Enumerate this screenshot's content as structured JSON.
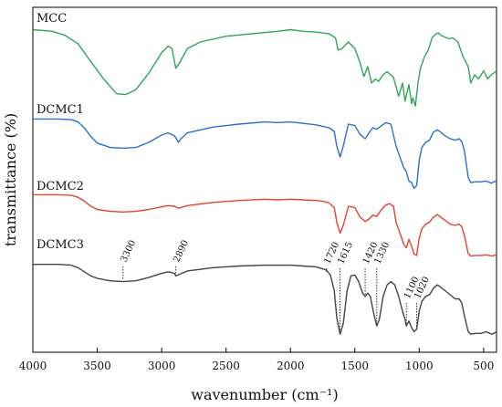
{
  "chart_data": {
    "type": "line",
    "title": "",
    "xlabel": "wavenumber (cm⁻¹)",
    "ylabel": "transmittance (%)",
    "xlim": [
      4000,
      400
    ],
    "x_reversed": true,
    "x_ticks": [
      "4000",
      "3500",
      "3000",
      "2500",
      "2000",
      "1500",
      "1000",
      "500"
    ],
    "y_ticks_shown": false,
    "legend": "none",
    "series": [
      {
        "name": "MCC",
        "color": "#2fa65a",
        "points": [
          [
            4000,
            0.95
          ],
          [
            3850,
            0.93
          ],
          [
            3750,
            0.88
          ],
          [
            3650,
            0.78
          ],
          [
            3550,
            0.56
          ],
          [
            3450,
            0.35
          ],
          [
            3350,
            0.17
          ],
          [
            3280,
            0.16
          ],
          [
            3200,
            0.22
          ],
          [
            3100,
            0.42
          ],
          [
            3000,
            0.67
          ],
          [
            2950,
            0.75
          ],
          [
            2920,
            0.72
          ],
          [
            2890,
            0.48
          ],
          [
            2860,
            0.55
          ],
          [
            2800,
            0.72
          ],
          [
            2700,
            0.8
          ],
          [
            2500,
            0.87
          ],
          [
            2300,
            0.9
          ],
          [
            2100,
            0.93
          ],
          [
            2000,
            0.95
          ],
          [
            1900,
            0.93
          ],
          [
            1800,
            0.92
          ],
          [
            1750,
            0.91
          ],
          [
            1700,
            0.9
          ],
          [
            1650,
            0.85
          ],
          [
            1630,
            0.7
          ],
          [
            1600,
            0.72
          ],
          [
            1550,
            0.8
          ],
          [
            1500,
            0.72
          ],
          [
            1460,
            0.55
          ],
          [
            1430,
            0.38
          ],
          [
            1400,
            0.5
          ],
          [
            1370,
            0.3
          ],
          [
            1340,
            0.35
          ],
          [
            1316,
            0.32
          ],
          [
            1280,
            0.4
          ],
          [
            1250,
            0.44
          ],
          [
            1200,
            0.37
          ],
          [
            1160,
            0.14
          ],
          [
            1130,
            0.3
          ],
          [
            1110,
            0.08
          ],
          [
            1080,
            0.28
          ],
          [
            1060,
            0.05
          ],
          [
            1050,
            0.12
          ],
          [
            1030,
            0.02
          ],
          [
            1010,
            0.3
          ],
          [
            990,
            0.48
          ],
          [
            960,
            0.62
          ],
          [
            930,
            0.7
          ],
          [
            900,
            0.85
          ],
          [
            870,
            0.9
          ],
          [
            850,
            0.91
          ],
          [
            830,
            0.88
          ],
          [
            800,
            0.86
          ],
          [
            770,
            0.84
          ],
          [
            740,
            0.85
          ],
          [
            700,
            0.8
          ],
          [
            660,
            0.62
          ],
          [
            620,
            0.5
          ],
          [
            600,
            0.3
          ],
          [
            570,
            0.4
          ],
          [
            540,
            0.35
          ],
          [
            500,
            0.45
          ],
          [
            470,
            0.35
          ],
          [
            440,
            0.4
          ],
          [
            400,
            0.45
          ]
        ]
      },
      {
        "name": "DCMC1",
        "color": "#2a6fd1",
        "points": [
          [
            4000,
            0.97
          ],
          [
            3800,
            0.97
          ],
          [
            3700,
            0.96
          ],
          [
            3650,
            0.93
          ],
          [
            3600,
            0.85
          ],
          [
            3550,
            0.73
          ],
          [
            3500,
            0.64
          ],
          [
            3400,
            0.58
          ],
          [
            3300,
            0.57
          ],
          [
            3200,
            0.58
          ],
          [
            3100,
            0.65
          ],
          [
            3000,
            0.75
          ],
          [
            2950,
            0.78
          ],
          [
            2900,
            0.74
          ],
          [
            2870,
            0.65
          ],
          [
            2850,
            0.7
          ],
          [
            2800,
            0.78
          ],
          [
            2600,
            0.86
          ],
          [
            2400,
            0.9
          ],
          [
            2200,
            0.93
          ],
          [
            2100,
            0.92
          ],
          [
            2000,
            0.93
          ],
          [
            1900,
            0.91
          ],
          [
            1800,
            0.89
          ],
          [
            1750,
            0.87
          ],
          [
            1700,
            0.85
          ],
          [
            1660,
            0.8
          ],
          [
            1640,
            0.6
          ],
          [
            1615,
            0.45
          ],
          [
            1590,
            0.6
          ],
          [
            1550,
            0.9
          ],
          [
            1500,
            0.88
          ],
          [
            1460,
            0.76
          ],
          [
            1420,
            0.7
          ],
          [
            1390,
            0.78
          ],
          [
            1360,
            0.85
          ],
          [
            1330,
            0.83
          ],
          [
            1300,
            0.87
          ],
          [
            1260,
            0.92
          ],
          [
            1220,
            0.9
          ],
          [
            1180,
            0.6
          ],
          [
            1150,
            0.45
          ],
          [
            1120,
            0.3
          ],
          [
            1100,
            0.25
          ],
          [
            1080,
            0.12
          ],
          [
            1060,
            0.1
          ],
          [
            1040,
            0.02
          ],
          [
            1020,
            0.06
          ],
          [
            1000,
            0.4
          ],
          [
            980,
            0.58
          ],
          [
            950,
            0.65
          ],
          [
            920,
            0.68
          ],
          [
            890,
            0.79
          ],
          [
            860,
            0.82
          ],
          [
            840,
            0.8
          ],
          [
            800,
            0.74
          ],
          [
            760,
            0.7
          ],
          [
            720,
            0.68
          ],
          [
            690,
            0.7
          ],
          [
            670,
            0.66
          ],
          [
            650,
            0.54
          ],
          [
            620,
            0.17
          ],
          [
            600,
            0.1
          ],
          [
            560,
            0.11
          ],
          [
            520,
            0.11
          ],
          [
            480,
            0.12
          ],
          [
            440,
            0.09
          ],
          [
            420,
            0.11
          ],
          [
            400,
            0.12
          ]
        ]
      },
      {
        "name": "DCMC2",
        "color": "#e34234",
        "points": [
          [
            4000,
            0.98
          ],
          [
            3800,
            0.98
          ],
          [
            3700,
            0.97
          ],
          [
            3650,
            0.94
          ],
          [
            3600,
            0.88
          ],
          [
            3550,
            0.8
          ],
          [
            3500,
            0.75
          ],
          [
            3400,
            0.72
          ],
          [
            3300,
            0.71
          ],
          [
            3200,
            0.72
          ],
          [
            3100,
            0.75
          ],
          [
            3000,
            0.79
          ],
          [
            2950,
            0.81
          ],
          [
            2900,
            0.8
          ],
          [
            2870,
            0.77
          ],
          [
            2850,
            0.78
          ],
          [
            2800,
            0.81
          ],
          [
            2600,
            0.86
          ],
          [
            2400,
            0.89
          ],
          [
            2200,
            0.91
          ],
          [
            2100,
            0.9
          ],
          [
            2000,
            0.91
          ],
          [
            1900,
            0.9
          ],
          [
            1800,
            0.89
          ],
          [
            1750,
            0.88
          ],
          [
            1700,
            0.85
          ],
          [
            1660,
            0.78
          ],
          [
            1640,
            0.55
          ],
          [
            1615,
            0.38
          ],
          [
            1590,
            0.5
          ],
          [
            1550,
            0.8
          ],
          [
            1500,
            0.78
          ],
          [
            1460,
            0.63
          ],
          [
            1420,
            0.56
          ],
          [
            1390,
            0.6
          ],
          [
            1360,
            0.66
          ],
          [
            1330,
            0.64
          ],
          [
            1300,
            0.73
          ],
          [
            1260,
            0.82
          ],
          [
            1230,
            0.84
          ],
          [
            1200,
            0.8
          ],
          [
            1180,
            0.55
          ],
          [
            1150,
            0.38
          ],
          [
            1120,
            0.2
          ],
          [
            1100,
            0.15
          ],
          [
            1080,
            0.28
          ],
          [
            1060,
            0.18
          ],
          [
            1040,
            0.05
          ],
          [
            1020,
            0.03
          ],
          [
            1000,
            0.3
          ],
          [
            980,
            0.45
          ],
          [
            950,
            0.52
          ],
          [
            920,
            0.55
          ],
          [
            890,
            0.63
          ],
          [
            860,
            0.67
          ],
          [
            840,
            0.64
          ],
          [
            800,
            0.58
          ],
          [
            760,
            0.52
          ],
          [
            720,
            0.5
          ],
          [
            690,
            0.52
          ],
          [
            670,
            0.48
          ],
          [
            650,
            0.35
          ],
          [
            620,
            0.06
          ],
          [
            600,
            0.02
          ],
          [
            560,
            0.03
          ],
          [
            520,
            0.03
          ],
          [
            480,
            0.04
          ],
          [
            440,
            0.02
          ],
          [
            420,
            0.03
          ],
          [
            400,
            0.04
          ]
        ]
      },
      {
        "name": "DCMC3",
        "color": "#444444",
        "points": [
          [
            4000,
            0.87
          ],
          [
            3800,
            0.87
          ],
          [
            3700,
            0.86
          ],
          [
            3650,
            0.83
          ],
          [
            3600,
            0.78
          ],
          [
            3550,
            0.73
          ],
          [
            3500,
            0.7
          ],
          [
            3400,
            0.67
          ],
          [
            3300,
            0.66
          ],
          [
            3200,
            0.67
          ],
          [
            3100,
            0.71
          ],
          [
            3000,
            0.76
          ],
          [
            2950,
            0.78
          ],
          [
            2900,
            0.76
          ],
          [
            2890,
            0.73
          ],
          [
            2860,
            0.75
          ],
          [
            2800,
            0.79
          ],
          [
            2600,
            0.83
          ],
          [
            2400,
            0.85
          ],
          [
            2200,
            0.86
          ],
          [
            2100,
            0.86
          ],
          [
            2000,
            0.86
          ],
          [
            1900,
            0.85
          ],
          [
            1800,
            0.84
          ],
          [
            1760,
            0.82
          ],
          [
            1720,
            0.8
          ],
          [
            1690,
            0.74
          ],
          [
            1660,
            0.55
          ],
          [
            1640,
            0.22
          ],
          [
            1615,
            0.02
          ],
          [
            1590,
            0.15
          ],
          [
            1560,
            0.55
          ],
          [
            1530,
            0.73
          ],
          [
            1500,
            0.74
          ],
          [
            1470,
            0.66
          ],
          [
            1440,
            0.52
          ],
          [
            1420,
            0.48
          ],
          [
            1400,
            0.52
          ],
          [
            1380,
            0.48
          ],
          [
            1350,
            0.25
          ],
          [
            1330,
            0.12
          ],
          [
            1310,
            0.2
          ],
          [
            1280,
            0.48
          ],
          [
            1250,
            0.62
          ],
          [
            1220,
            0.66
          ],
          [
            1190,
            0.62
          ],
          [
            1160,
            0.48
          ],
          [
            1130,
            0.3
          ],
          [
            1110,
            0.2
          ],
          [
            1100,
            0.12
          ],
          [
            1080,
            0.18
          ],
          [
            1060,
            0.1
          ],
          [
            1040,
            0.05
          ],
          [
            1020,
            0.08
          ],
          [
            1000,
            0.3
          ],
          [
            980,
            0.42
          ],
          [
            950,
            0.48
          ],
          [
            920,
            0.5
          ],
          [
            890,
            0.58
          ],
          [
            860,
            0.62
          ],
          [
            840,
            0.6
          ],
          [
            800,
            0.55
          ],
          [
            760,
            0.5
          ],
          [
            720,
            0.45
          ],
          [
            690,
            0.45
          ],
          [
            670,
            0.4
          ],
          [
            650,
            0.25
          ],
          [
            620,
            0.05
          ],
          [
            600,
            0.02
          ],
          [
            560,
            0.03
          ],
          [
            520,
            0.03
          ],
          [
            480,
            0.05
          ],
          [
            440,
            0.02
          ],
          [
            420,
            0.03
          ],
          [
            400,
            0.05
          ]
        ]
      }
    ],
    "annotations": [
      {
        "text": "3300",
        "x": 3300,
        "series": "DCMC3"
      },
      {
        "text": "2890",
        "x": 2890,
        "series": "DCMC3"
      },
      {
        "text": "1720",
        "x": 1720,
        "series": "DCMC3"
      },
      {
        "text": "1615",
        "x": 1615,
        "series": "DCMC3"
      },
      {
        "text": "1420",
        "x": 1420,
        "series": "DCMC3"
      },
      {
        "text": "1330",
        "x": 1330,
        "series": "DCMC3"
      },
      {
        "text": "1100",
        "x": 1100,
        "series": "DCMC3"
      },
      {
        "text": "1020",
        "x": 1020,
        "series": "DCMC3"
      }
    ]
  }
}
